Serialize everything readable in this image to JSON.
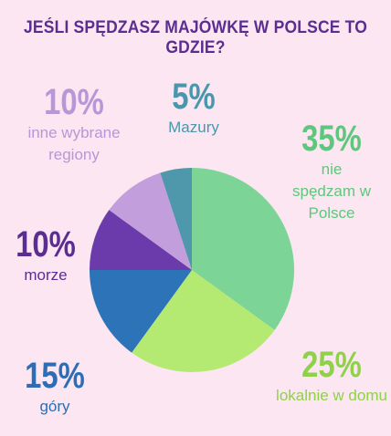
{
  "colors": {
    "background": "#fbe6f1",
    "title": "#5b2d91"
  },
  "chart_data": {
    "type": "pie",
    "title": "JEŚLI SPĘDZASZ MAJÓWKĘ W POLSCE TO GDZIE?",
    "slices": [
      {
        "pct_label": "35%",
        "label": "nie spędzam w Polsce",
        "value": 35,
        "color": "#7dd497",
        "text_color": "#5ec77d"
      },
      {
        "pct_label": "25%",
        "label": "lokalnie w domu",
        "value": 25,
        "color": "#b5ea72",
        "text_color": "#8fd14b"
      },
      {
        "pct_label": "15%",
        "label": "góry",
        "value": 15,
        "color": "#2c73b7",
        "text_color": "#2c6db5"
      },
      {
        "pct_label": "10%",
        "label": "morze",
        "value": 10,
        "color": "#6c3bab",
        "text_color": "#5b2d91"
      },
      {
        "pct_label": "10%",
        "label": "inne wybrane regiony",
        "value": 10,
        "color": "#c29fdc",
        "text_color": "#b797d6"
      },
      {
        "pct_label": "5%",
        "label": "Mazury",
        "value": 5,
        "color": "#4f97ab",
        "text_color": "#4a97ad"
      }
    ],
    "legend": "none"
  }
}
